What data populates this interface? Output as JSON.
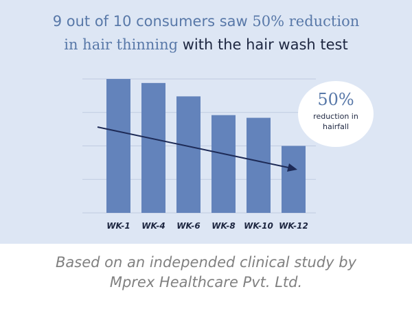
{
  "headline": {
    "part1": "9 out of 10 consumers saw ",
    "part2": "50% reduction",
    "part3": "in hair thinning",
    "part4": " with the hair wash test"
  },
  "badge": {
    "value": "50%",
    "text": "reduction in hairfall"
  },
  "footer": {
    "line1": "Based on an independed clinical study by",
    "line2": "Mprex Healthcare Pvt. Ltd."
  },
  "colors": {
    "panel": "#dde6f4",
    "bar": "#6383bb",
    "arrow": "#1d2a56",
    "accent": "#5878a8",
    "dark": "#1d2640"
  },
  "chart_data": {
    "type": "bar",
    "categories": [
      "WK-1",
      "WK-4",
      "WK-6",
      "WK-8",
      "WK-10",
      "WK-12"
    ],
    "values": [
      100,
      97,
      87,
      73,
      71,
      50
    ],
    "ylim": [
      0,
      100
    ],
    "grid": true,
    "trend_arrow": true,
    "title": "",
    "xlabel": "",
    "ylabel": ""
  }
}
